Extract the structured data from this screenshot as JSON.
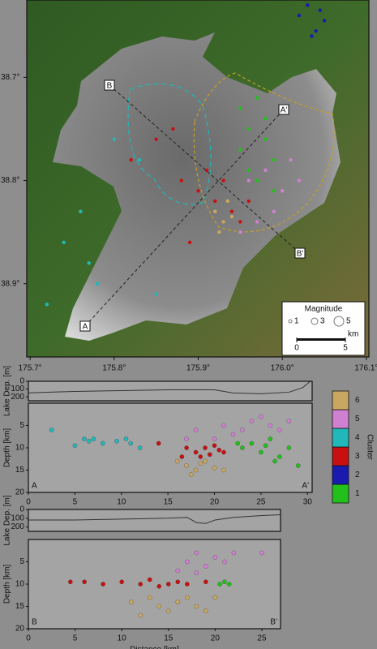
{
  "chart_data": [
    {
      "type": "map",
      "xlim": [
        175.696,
        176.103
      ],
      "ylim": [
        38.625,
        38.971
      ],
      "xticks": [
        {
          "value": 175.7,
          "label": "175.7°"
        },
        {
          "value": 175.8,
          "label": "175.8°"
        },
        {
          "value": 175.9,
          "label": "175.9°"
        },
        {
          "value": 176.0,
          "label": "176.0°"
        },
        {
          "value": 176.1,
          "label": "176.1°"
        }
      ],
      "yticks": [
        {
          "value": 38.7,
          "label": "38.7°"
        },
        {
          "value": 38.8,
          "label": "38.8°"
        },
        {
          "value": 38.9,
          "label": "38.9°"
        }
      ],
      "section_labels": [
        "B",
        "A'",
        "B'",
        "A"
      ],
      "legend": {
        "title": "Magnitude",
        "sizes": [
          1,
          3,
          5
        ]
      },
      "scale_bar": {
        "ticks": [
          0,
          5
        ],
        "unit": "km"
      },
      "series": [
        {
          "color": "#22c01a",
          "x": [
            175.95,
            175.96,
            175.97,
            175.98,
            175.99,
            175.96,
            175.97,
            175.98,
            175.95,
            175.99
          ],
          "values": [
            38.73,
            38.75,
            38.72,
            38.76,
            38.78,
            38.79,
            38.8,
            38.74,
            38.77,
            38.81
          ]
        },
        {
          "color": "#1a1ab0",
          "x": [
            176.02,
            176.03,
            176.04,
            176.05,
            176.035,
            176.045
          ],
          "values": [
            38.64,
            38.63,
            38.655,
            38.645,
            38.66,
            38.635
          ]
        },
        {
          "color": "#c81010",
          "x": [
            175.82,
            175.85,
            175.88,
            175.9,
            175.92,
            175.93,
            175.91,
            175.94,
            175.96,
            175.87,
            175.89,
            175.95
          ],
          "values": [
            38.78,
            38.76,
            38.8,
            38.81,
            38.82,
            38.8,
            38.79,
            38.83,
            38.82,
            38.75,
            38.86,
            38.84
          ]
        },
        {
          "color": "#20b8b8",
          "x": [
            175.72,
            175.77,
            175.78,
            175.8,
            175.76,
            175.83,
            175.85,
            175.74
          ],
          "values": [
            38.92,
            38.88,
            38.9,
            38.76,
            38.83,
            38.78,
            38.91,
            38.86
          ]
        },
        {
          "color": "#d080d0",
          "x": [
            175.96,
            175.98,
            176.0,
            176.01,
            175.99,
            175.97,
            176.02,
            175.95
          ],
          "values": [
            38.8,
            38.79,
            38.81,
            38.78,
            38.83,
            38.84,
            38.8,
            38.85
          ]
        },
        {
          "color": "#c8a860",
          "x": [
            175.92,
            175.93,
            175.94,
            175.925,
            175.935
          ],
          "values": [
            38.83,
            38.84,
            38.835,
            38.85,
            38.82
          ]
        }
      ]
    },
    {
      "type": "line",
      "y_label": "Lake Dep. [m]",
      "xlim": [
        0,
        30.5
      ],
      "ylim": [
        0,
        250
      ],
      "yticks": [
        0,
        100,
        200
      ],
      "x": [
        0,
        2,
        5,
        10,
        15,
        20,
        22,
        25,
        28,
        29.5,
        30.3
      ],
      "values": [
        150,
        140,
        130,
        120,
        110,
        110,
        150,
        160,
        140,
        80,
        0
      ]
    },
    {
      "type": "scatter",
      "y_label": "Depth [km]",
      "xlim": [
        0,
        30.5
      ],
      "ylim": [
        0,
        20
      ],
      "xticks": [
        0,
        5,
        10,
        15,
        20,
        25,
        30
      ],
      "yticks": [
        5,
        10,
        15,
        20
      ],
      "annotations": [
        "A",
        "A'"
      ],
      "colorbar": {
        "title": "Cluster",
        "ticks": [
          1,
          2,
          3,
          4,
          5,
          6
        ],
        "colors": [
          "#22c01a",
          "#1a1ab0",
          "#c81010",
          "#20b8b8",
          "#d080d0",
          "#c8a860"
        ]
      },
      "series": [
        {
          "color": "#20b8b8",
          "x": [
            5,
            6,
            6.5,
            7,
            8,
            9.5,
            10.5,
            11,
            2.5,
            12
          ],
          "values": [
            9.5,
            8,
            8.5,
            8,
            9,
            8.5,
            8,
            9,
            6,
            10
          ]
        },
        {
          "color": "#c81010",
          "x": [
            17,
            18,
            19,
            20,
            21,
            18.5,
            20.5,
            16.5,
            14,
            19.5
          ],
          "values": [
            10,
            11,
            10,
            9.5,
            11,
            12,
            10.5,
            12,
            9,
            11.5
          ]
        },
        {
          "color": "#c8a860",
          "x": [
            17,
            18,
            19,
            20,
            17.5,
            18.5,
            16,
            21
          ],
          "values": [
            14,
            15,
            13,
            14.5,
            16,
            13.5,
            13,
            15
          ]
        },
        {
          "color": "#d080d0",
          "x": [
            17,
            18,
            21,
            23,
            24,
            25,
            26,
            27,
            28,
            22,
            20
          ],
          "values": [
            8,
            6,
            5,
            6,
            4,
            3,
            5,
            6,
            4,
            7,
            8
          ]
        },
        {
          "color": "#22c01a",
          "x": [
            23,
            24,
            25,
            26,
            27,
            28,
            25.5,
            22.5,
            29,
            26.5
          ],
          "values": [
            10,
            9,
            11,
            8,
            12,
            10,
            9.5,
            9,
            14,
            13
          ]
        }
      ]
    },
    {
      "type": "line",
      "y_label": "Lake Dep. [m]",
      "xlim": [
        0,
        27
      ],
      "ylim": [
        0,
        250
      ],
      "yticks": [
        0,
        100,
        200
      ],
      "x": [
        0,
        5,
        10,
        15,
        17,
        18,
        19,
        20,
        22,
        25,
        27
      ],
      "values": [
        120,
        120,
        110,
        100,
        90,
        150,
        160,
        120,
        90,
        70,
        60
      ]
    },
    {
      "type": "scatter",
      "y_label": "Depth [km]",
      "x_label": "Distance [km]",
      "xlim": [
        0,
        27
      ],
      "ylim": [
        0,
        20
      ],
      "xticks": [
        0,
        5,
        10,
        15,
        20,
        25
      ],
      "yticks": [
        5,
        10,
        15,
        20
      ],
      "annotations": [
        "B",
        "B'"
      ],
      "series": [
        {
          "color": "#c81010",
          "x": [
            4.5,
            6,
            8,
            10,
            12,
            13,
            14,
            15,
            16,
            19,
            17
          ],
          "values": [
            9.5,
            9.5,
            10,
            9.5,
            10,
            9,
            10.5,
            10,
            9.5,
            9.5,
            10
          ]
        },
        {
          "color": "#c8a860",
          "x": [
            11,
            13,
            14,
            15,
            16,
            17,
            18,
            19,
            20,
            12
          ],
          "values": [
            14,
            13,
            15,
            16,
            14,
            13,
            15,
            16,
            13,
            17
          ]
        },
        {
          "color": "#d080d0",
          "x": [
            16,
            17,
            18,
            19,
            20,
            21,
            22,
            25,
            18
          ],
          "values": [
            7,
            5,
            3,
            6,
            4,
            5,
            3,
            3,
            7.5
          ]
        },
        {
          "color": "#22c01a",
          "x": [
            20.5,
            21,
            21.5
          ],
          "values": [
            10,
            9.5,
            10
          ]
        }
      ]
    }
  ]
}
